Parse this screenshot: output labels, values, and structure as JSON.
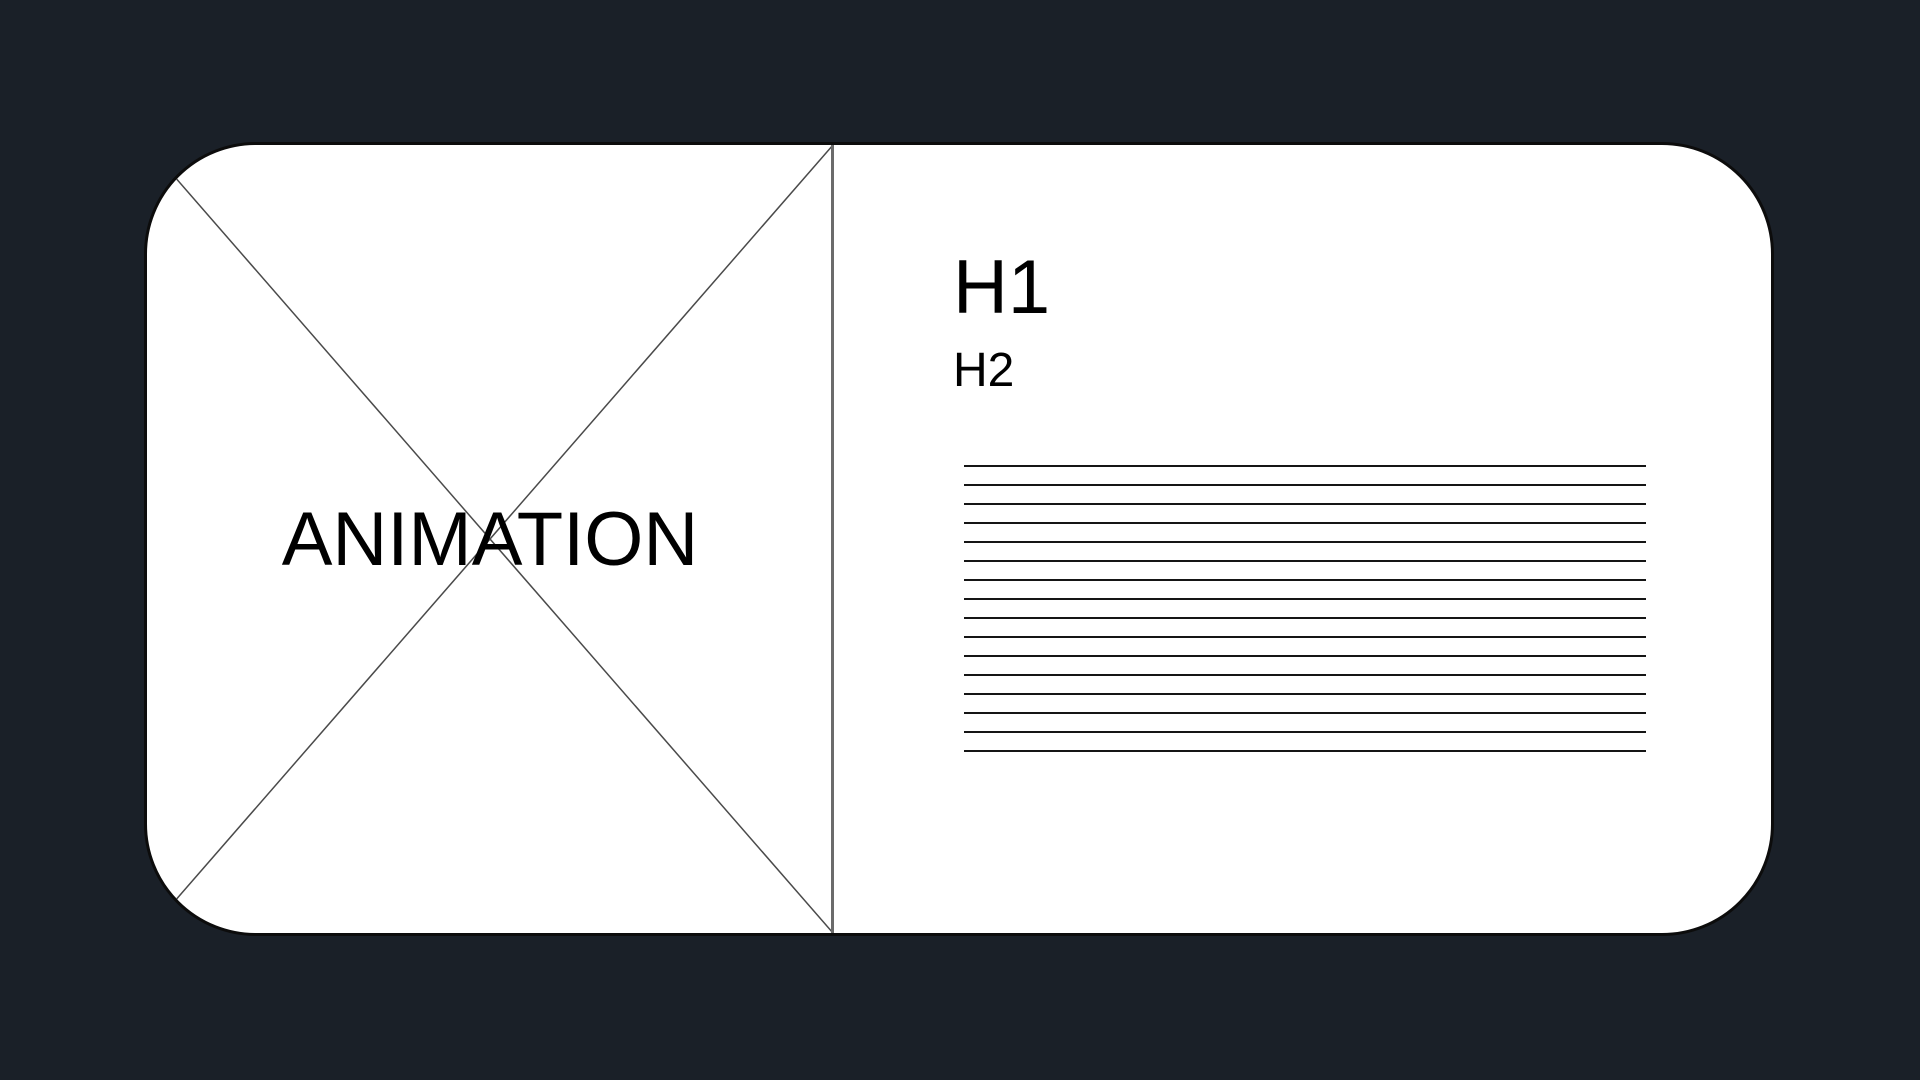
{
  "media": {
    "label": "ANIMATION",
    "placeholder_icon": "crossed-box-placeholder"
  },
  "content": {
    "h1": "H1",
    "h2": "H2",
    "text_line_count": 16
  },
  "colors": {
    "background": "#1a2028",
    "card": "#ffffff",
    "ink": "#000000",
    "divider": "#6b6b6b"
  }
}
